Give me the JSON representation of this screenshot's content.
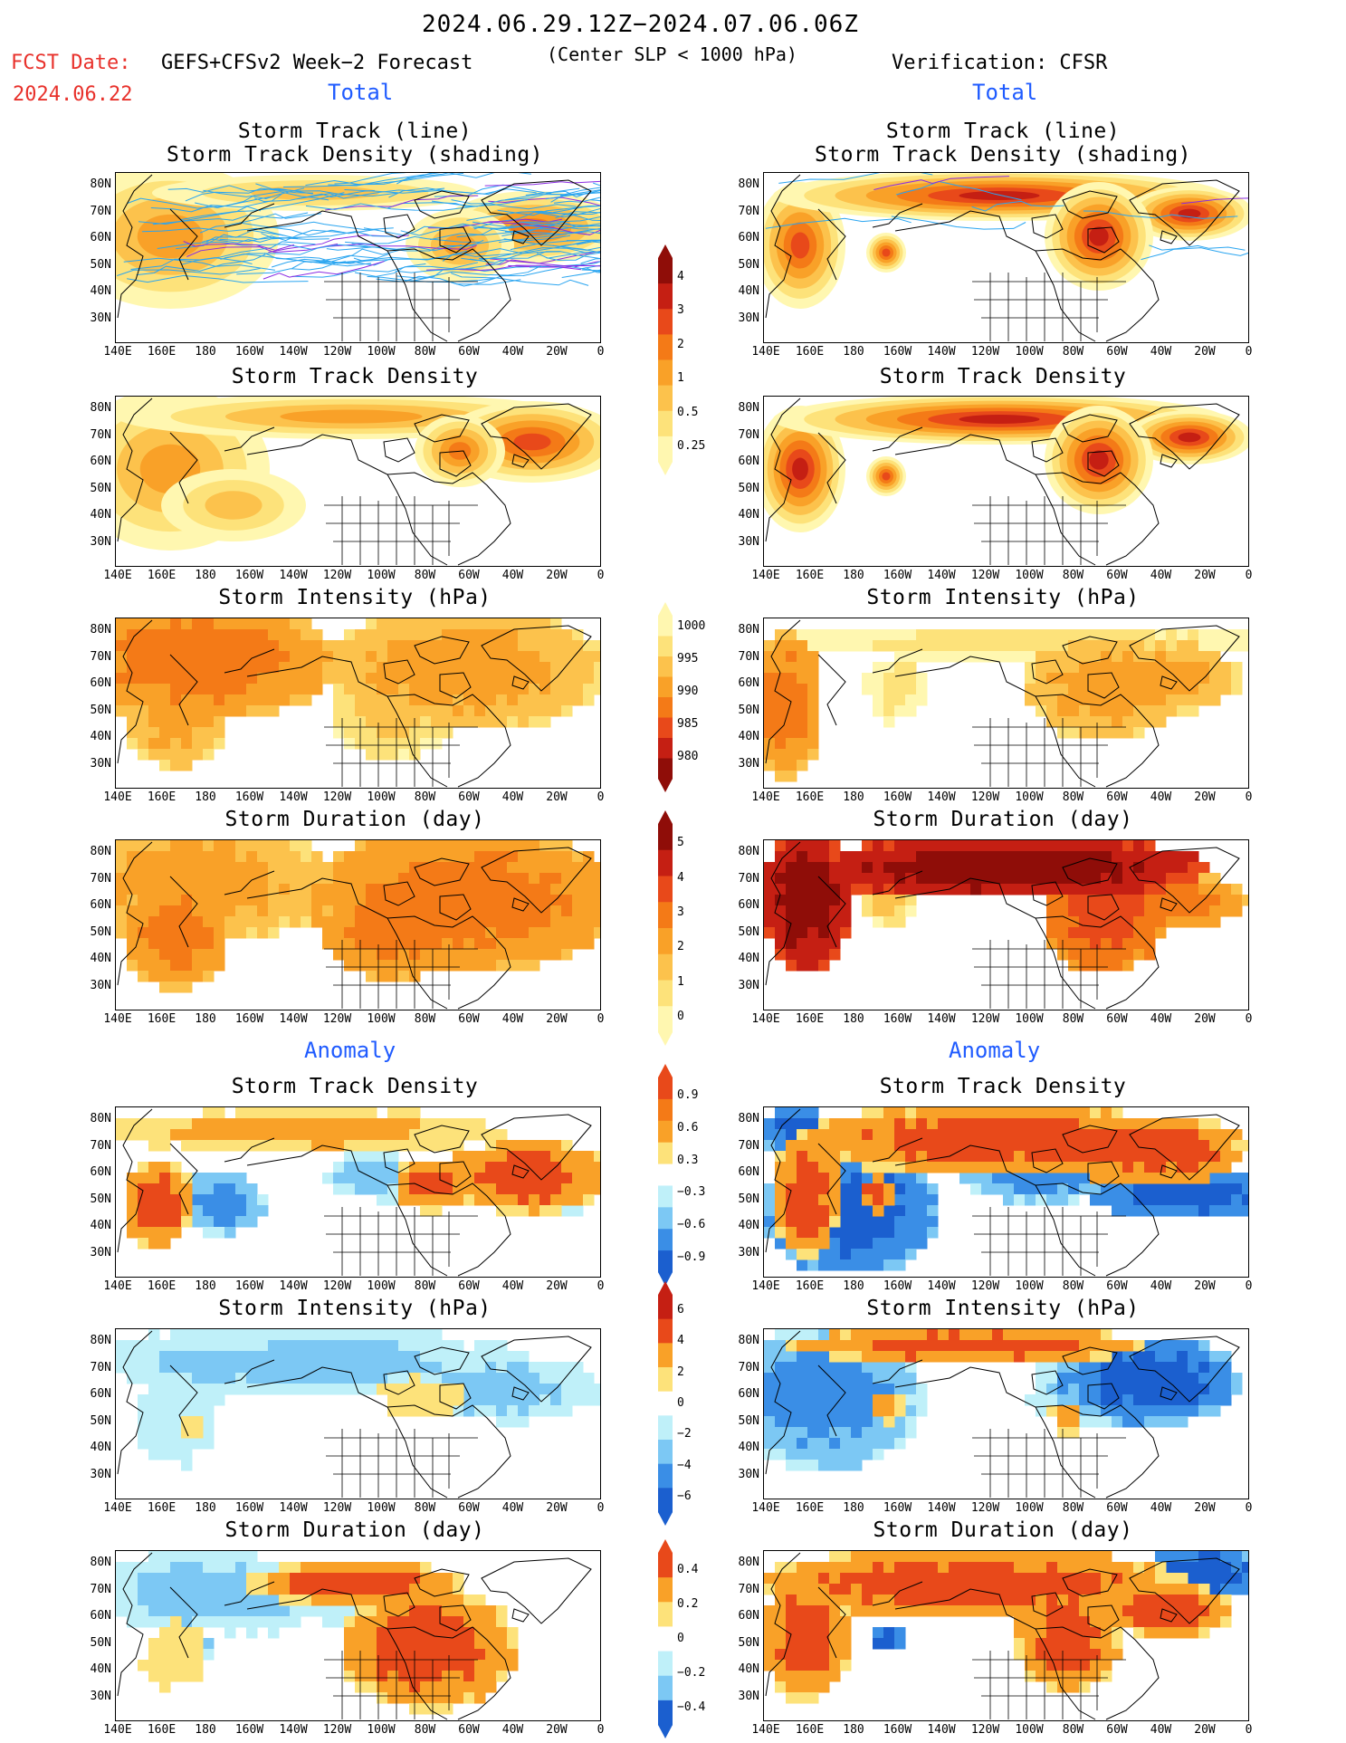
{
  "header": {
    "date_range": "2024.06.29.12Z−2024.07.06.06Z",
    "fcst_date_label": "FCST Date:",
    "fcst_date_value": "2024.06.22",
    "forecast_title": "GEFS+CFSv2 Week−2 Forecast",
    "slp_note": "(Center SLP < 1000 hPa)",
    "verification": "Verification: CFSR"
  },
  "section_labels": {
    "total_left": "Total",
    "total_right": "Total",
    "anomaly_left": "Anomaly",
    "anomaly_right": "Anomaly"
  },
  "panel_titles": {
    "track_line": "Storm Track (line)",
    "track_density_shading": "Storm Track Density (shading)",
    "track_density": "Storm Track Density",
    "intensity": "Storm Intensity (hPa)",
    "duration": "Storm Duration (day)"
  },
  "axes": {
    "lat_labels": [
      "80N",
      "70N",
      "60N",
      "50N",
      "40N",
      "30N"
    ],
    "lon_labels": [
      "140E",
      "160E",
      "180",
      "160W",
      "140W",
      "120W",
      "100W",
      "80W",
      "60W",
      "40W",
      "20W",
      "0"
    ]
  },
  "colorbars": {
    "density_total": [
      "4",
      "3",
      "2",
      "1",
      "0.5",
      "0.25"
    ],
    "intensity_total": [
      "1000",
      "995",
      "990",
      "985",
      "980"
    ],
    "duration_total": [
      "5",
      "4",
      "3",
      "2",
      "1",
      "0"
    ],
    "density_anom": [
      "0.9",
      "0.6",
      "0.3",
      "−0.3",
      "−0.6",
      "−0.9"
    ],
    "intensity_anom": [
      "6",
      "4",
      "2",
      "0",
      "−2",
      "−4",
      "−6"
    ],
    "duration_anom": [
      "0.4",
      "0.2",
      "0",
      "−0.2",
      "−0.4"
    ]
  },
  "colors": {
    "warm": [
      "#fff7b0",
      "#fde27a",
      "#fcc24c",
      "#f9a128",
      "#f47a17",
      "#e8491a",
      "#c51f13",
      "#8f0d08"
    ],
    "anom_pos": [
      "#fde27a",
      "#f9a128",
      "#e8491a"
    ],
    "anom_neg": [
      "#bff0f9",
      "#7cc8f4",
      "#3a8ee6",
      "#1b5fcf"
    ]
  }
}
